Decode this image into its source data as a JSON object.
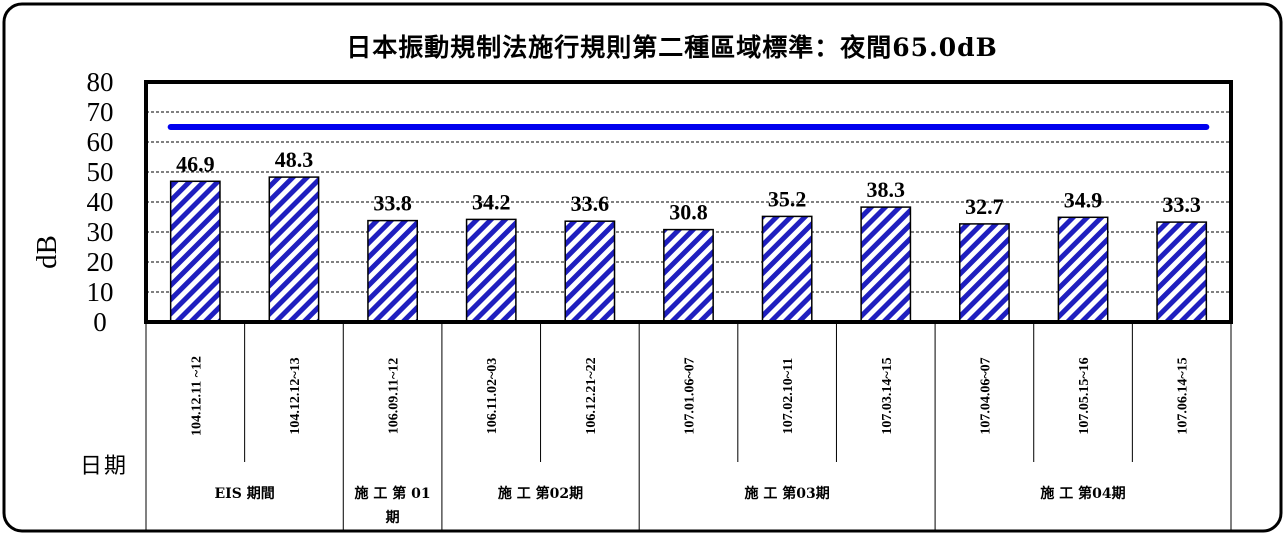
{
  "chart_data": {
    "type": "bar",
    "title": "日本振動規制法施行規則第二種區域標準：夜間65.0dB",
    "ylabel": "dB",
    "xlabel": "日期",
    "ylim": [
      0,
      80
    ],
    "yticks": [
      0,
      10,
      20,
      30,
      40,
      50,
      60,
      70,
      80
    ],
    "grid": true,
    "standard_line": {
      "value": 65.0,
      "color": "#0000ee"
    },
    "bar_color": "#1f1fbf",
    "categories": [
      "104.12.11 ~12",
      "104.12.12~13",
      "106.09.11~12",
      "106.11.02~03",
      "106.12.21~22",
      "107.01.06~07",
      "107.02.10~11",
      "107.03.14~15",
      "107.04.06~07",
      "107.05.15~16",
      "107.06.14~15"
    ],
    "values": [
      46.9,
      48.3,
      33.8,
      34.2,
      33.6,
      30.8,
      35.2,
      38.3,
      32.7,
      34.9,
      33.3
    ],
    "value_labels": [
      "46.9",
      "48.3",
      "33.8",
      "34.2",
      "33.6",
      "30.8",
      "35.2",
      "38.3",
      "32.7",
      "34.9",
      "33.3"
    ],
    "groups": [
      {
        "label": "EIS 期間",
        "start": 0,
        "count": 2
      },
      {
        "label": "施 工 第 01 期",
        "start": 2,
        "count": 1
      },
      {
        "label": "施 工 第02期",
        "start": 3,
        "count": 2
      },
      {
        "label": "施 工 第03期",
        "start": 5,
        "count": 3
      },
      {
        "label": "施 工 第04期",
        "start": 8,
        "count": 3
      }
    ]
  }
}
